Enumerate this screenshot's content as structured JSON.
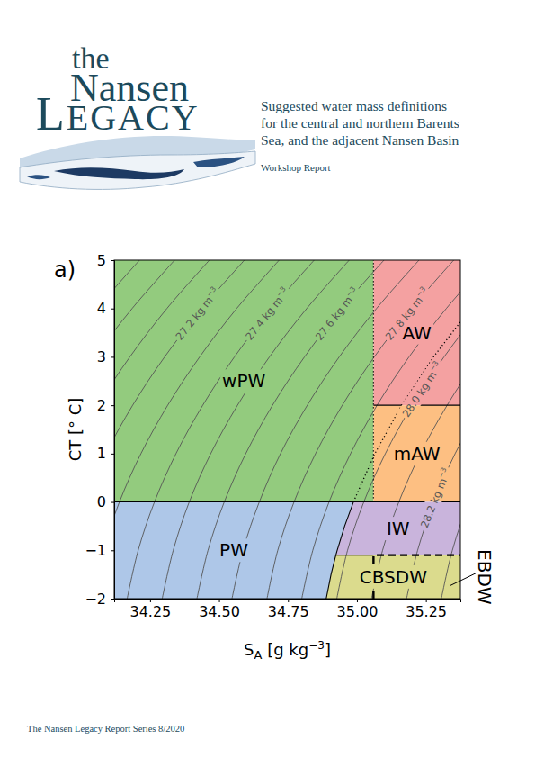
{
  "header": {
    "logo": [
      "the",
      "Nansen",
      "LEGACY"
    ],
    "title": "Suggested water mass definitions for the central and northern Barents Sea, and the adjacent Nansen Basin",
    "subtitle": "Workshop Report"
  },
  "chart_data": {
    "type": "regions",
    "panel": "a)",
    "xlabel": {
      "text": "S",
      "sub": "A",
      "rest": " [g kg",
      "sup": "−3",
      "end": "]"
    },
    "ylabel": "CT [° C]",
    "xlim": [
      34.12,
      35.375
    ],
    "ylim": [
      -2,
      5
    ],
    "xticks": [
      34.25,
      {
        "value": 34.5,
        "label": "34.50"
      },
      34.75,
      {
        "value": 35,
        "label": "35.00"
      },
      35.25
    ],
    "yticks": [
      {
        "value": -2,
        "label": "−2"
      },
      {
        "value": -1,
        "label": "−1"
      },
      0,
      1,
      2,
      3,
      4,
      5
    ],
    "regions": [
      {
        "name": "wPW",
        "color": "#93cb7e",
        "points": [
          [
            34.12,
            0
          ],
          [
            35.06,
            0
          ],
          [
            35.06,
            5
          ],
          [
            34.12,
            5
          ]
        ]
      },
      {
        "name": "AW",
        "color": "#f4a1a1",
        "points": [
          [
            35.06,
            2
          ],
          [
            35.375,
            2
          ],
          [
            35.375,
            5
          ],
          [
            35.06,
            5
          ]
        ]
      },
      {
        "name": "mAW",
        "color": "#fdbf82",
        "points": [
          [
            35.06,
            0
          ],
          [
            35.375,
            0
          ],
          [
            35.375,
            2
          ],
          [
            35.06,
            2
          ]
        ]
      },
      {
        "name": "PW",
        "color": "#aec7e8",
        "points": [
          [
            34.12,
            -2
          ],
          [
            34.8886,
            -2
          ],
          [
            34.9061,
            -1.5
          ],
          [
            34.9236,
            -1.1
          ],
          [
            34.9284,
            -1
          ],
          [
            34.9555,
            -0.5
          ],
          [
            34.9873,
            0
          ],
          [
            34.12,
            0
          ]
        ]
      },
      {
        "name": "IW",
        "color": "#c9b4dc",
        "points": [
          [
            34.9236,
            -1.1
          ],
          [
            35.375,
            -1.1
          ],
          [
            35.375,
            0
          ],
          [
            34.9873,
            0
          ],
          [
            34.9555,
            -0.5
          ],
          [
            34.9284,
            -1
          ]
        ]
      },
      {
        "name": "CBSDW",
        "color": "#dbdb8d",
        "points": [
          [
            34.8886,
            -2
          ],
          [
            35.375,
            -2
          ],
          [
            35.375,
            -1.1
          ],
          [
            34.9236,
            -1.1
          ],
          [
            34.9061,
            -1.5
          ]
        ]
      },
      {
        "name": "EBDW",
        "points": [
          [
            35.06,
            -2
          ],
          [
            35.375,
            -2
          ],
          [
            35.375,
            -1.1
          ],
          [
            35.06,
            -1.1
          ]
        ]
      }
    ],
    "boundaries": [
      {
        "points": [
          [
            34.12,
            0
          ],
          [
            35.375,
            0
          ]
        ],
        "line_style": "solid"
      },
      {
        "points": [
          [
            35.06,
            2
          ],
          [
            35.375,
            2
          ]
        ],
        "line_style": "solid"
      },
      {
        "points": [
          [
            34.8886,
            -2
          ],
          [
            34.9061,
            -1.5
          ],
          [
            34.9236,
            -1.1
          ],
          [
            34.9284,
            -1
          ],
          [
            34.9555,
            -0.5
          ],
          [
            34.9873,
            0
          ]
        ],
        "line_style": "solid"
      },
      {
        "points": [
          [
            34.9236,
            -1.1
          ],
          [
            35.06,
            -1.1
          ]
        ],
        "line_style": "solid"
      },
      {
        "points": [
          [
            35.06,
            0
          ],
          [
            35.06,
            5
          ]
        ],
        "line_style": "dotted"
      },
      {
        "points": [
          [
            34.9873,
            0
          ],
          [
            35.0651,
            1
          ],
          [
            35.162,
            2
          ],
          [
            35.2778,
            3
          ],
          [
            35.4126,
            4
          ]
        ],
        "line_style": "dotted"
      },
      {
        "points": [
          [
            35.06,
            -2
          ],
          [
            35.06,
            -1.1
          ],
          [
            35.375,
            -1.1
          ]
        ],
        "line_style": "dashed"
      }
    ],
    "isopycnals": {
      "ct": [
        -2,
        -1,
        0,
        1,
        2,
        3,
        4,
        5
      ],
      "lines": [
        {
          "sa": [
            33.534,
            33.574,
            33.633,
            33.711,
            33.808,
            33.924,
            34.058,
            34.212
          ]
        },
        {
          "sa": [
            33.661,
            33.701,
            33.76,
            33.837,
            33.934,
            34.05,
            34.185,
            34.339
          ]
        },
        {
          "sa": [
            33.787,
            33.827,
            33.886,
            33.964,
            34.061,
            34.177,
            34.311,
            34.465
          ]
        },
        {
          "sa": [
            33.914,
            33.954,
            34.013,
            34.09,
            34.187,
            34.303,
            34.438,
            34.592
          ],
          "label": {
            "text": "27.2 kg m",
            "sup": "−3"
          }
        },
        {
          "sa": [
            34.04,
            34.08,
            34.139,
            34.217,
            34.314,
            34.43,
            34.564,
            34.718
          ]
        },
        {
          "sa": [
            34.167,
            34.207,
            34.266,
            34.344,
            34.441,
            34.556,
            34.691,
            34.845
          ],
          "label": {
            "text": "27.4 kg m",
            "sup": "−3"
          }
        },
        {
          "sa": [
            34.294,
            34.334,
            34.392,
            34.47,
            34.567,
            34.683,
            34.818,
            34.972
          ]
        },
        {
          "sa": [
            34.42,
            34.46,
            34.519,
            34.597,
            34.694,
            34.81,
            34.944,
            35.098
          ],
          "label": {
            "text": "27.6 kg m",
            "sup": "−3"
          }
        },
        {
          "sa": [
            34.547,
            34.587,
            34.646,
            34.723,
            34.82,
            34.936,
            35.071,
            35.225
          ]
        },
        {
          "sa": [
            34.674,
            34.713,
            34.772,
            34.85,
            34.947,
            35.063,
            35.198,
            35.351
          ],
          "label": {
            "text": "27.8 kg m",
            "sup": "−3"
          }
        },
        {
          "sa": [
            34.8,
            34.84,
            34.899,
            34.977,
            35.073,
            35.189,
            35.324,
            35.478
          ]
        },
        {
          "sa": [
            34.927,
            34.966,
            35.025,
            35.103,
            35.2,
            35.316,
            35.451,
            35.604
          ],
          "label": {
            "text": "28.0 kg m",
            "sup": "−3"
          }
        },
        {
          "sa": [
            35.053,
            35.093,
            35.152,
            35.23,
            35.327,
            35.442,
            35.577,
            35.731
          ]
        },
        {
          "sa": [
            35.18,
            35.22,
            35.279,
            35.356,
            35.453,
            35.569,
            35.704,
            35.858
          ],
          "label": {
            "text": "28.2 kg m",
            "sup": "−3"
          }
        },
        {
          "sa": [
            35.306,
            35.346,
            35.405,
            35.483,
            35.58,
            35.696,
            35.831,
            35.985
          ]
        }
      ]
    }
  },
  "footer": "The Nansen Legacy Report Series 8/2020"
}
